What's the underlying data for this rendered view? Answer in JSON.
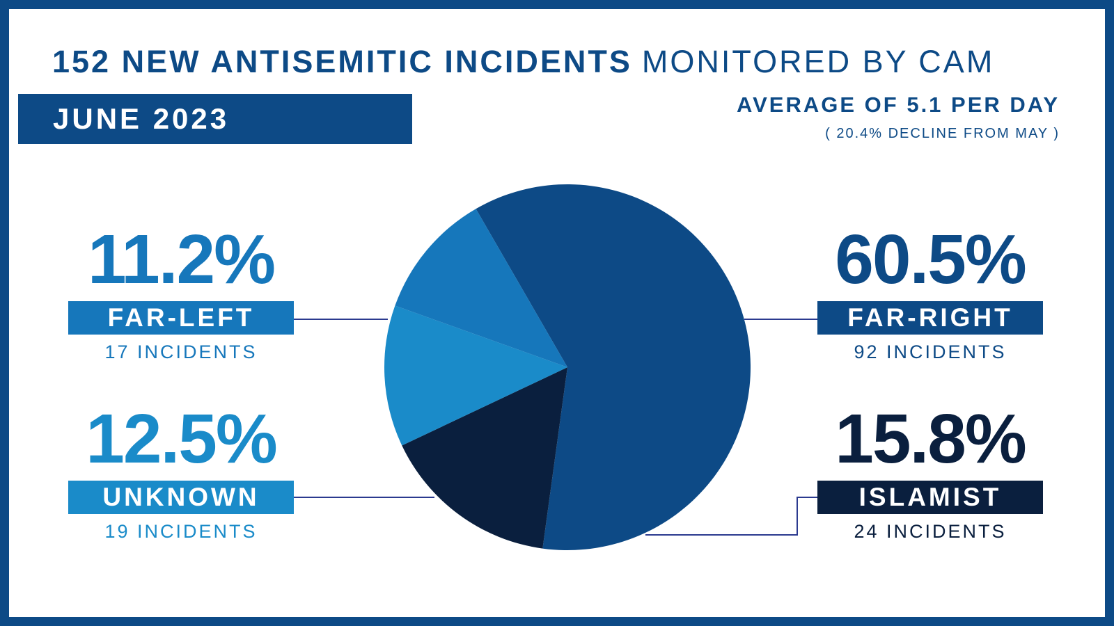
{
  "header": {
    "title_bold": "152 NEW ANTISEMITIC INCIDENTS",
    "title_light": "MONITORED BY CAM",
    "period": "JUNE 2023",
    "average": "AVERAGE OF 5.1 PER DAY",
    "change": "( 20.4% DECLINE FROM MAY )"
  },
  "colors": {
    "frame": "#0d4a86",
    "far_right": "#0d4a86",
    "islamist": "#0a1f3e",
    "unknown": "#1a8bc9",
    "far_left": "#1677bb",
    "connector": "#2b3a8f"
  },
  "chart_data": {
    "type": "pie",
    "title": "152 NEW ANTISEMITIC INCIDENTS MONITORED BY CAM",
    "slices": [
      {
        "label": "FAR-RIGHT",
        "percent": 60.5,
        "value": 92,
        "percent_label": "60.5%",
        "count_label": "92 INCIDENTS",
        "color": "#0d4a86"
      },
      {
        "label": "ISLAMIST",
        "percent": 15.8,
        "value": 24,
        "percent_label": "15.8%",
        "count_label": "24 INCIDENTS",
        "color": "#0a1f3e"
      },
      {
        "label": "UNKNOWN",
        "percent": 12.5,
        "value": 19,
        "percent_label": "12.5%",
        "count_label": "19 INCIDENTS",
        "color": "#1a8bc9"
      },
      {
        "label": "FAR-LEFT",
        "percent": 11.2,
        "value": 17,
        "percent_label": "11.2%",
        "count_label": "17 INCIDENTS",
        "color": "#1677bb"
      }
    ]
  }
}
